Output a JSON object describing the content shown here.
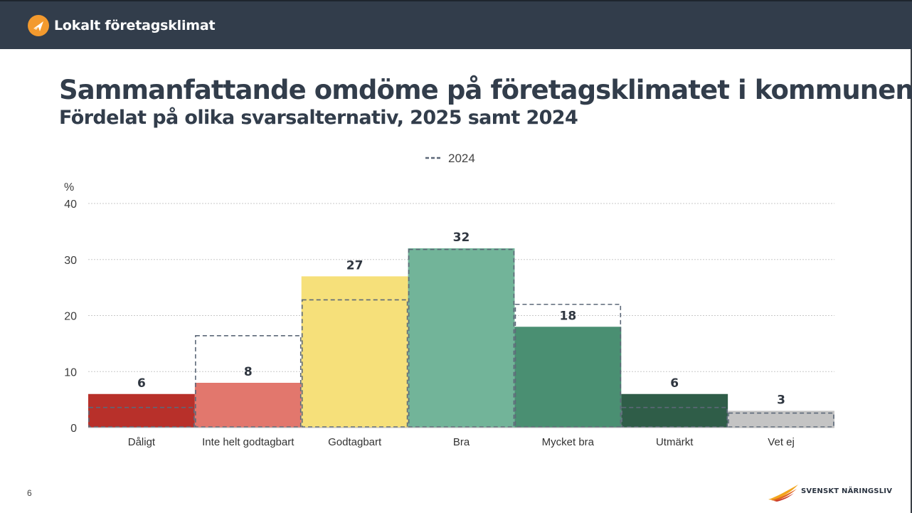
{
  "header": {
    "brand": "Lokalt företagsklimat",
    "brand_icon": "paper-plane-icon",
    "colors": {
      "bar": "#323d4b",
      "badge": "#f39a2e"
    }
  },
  "slide": {
    "title": "Sammanfattande omdöme på företagsklimatet i kommunen",
    "subtitle": "Fördelat på olika svarsalternativ, 2025 samt 2024",
    "page_number": "6"
  },
  "footer": {
    "logo_text": "SVENSKT NÄRINGSLIV",
    "logo_icon": "wing-icon"
  },
  "chart_data": {
    "type": "bar",
    "title": "",
    "xlabel": "",
    "ylabel": "%",
    "ylim": [
      0,
      40
    ],
    "yticks": [
      0,
      10,
      20,
      30,
      40
    ],
    "grid": true,
    "legend_position": "top-center",
    "categories": [
      "Dåligt",
      "Inte helt godtagbart",
      "Godtagbart",
      "Bra",
      "Mycket bra",
      "Utmärkt",
      "Vet ej"
    ],
    "series": [
      {
        "values": [
          6,
          8,
          27,
          32,
          18,
          6,
          3
        ],
        "colors": [
          "#b8302a",
          "#e2776d",
          "#f6e07a",
          "#72b499",
          "#4a8f72",
          "#2f5d48",
          "#c4c4c4"
        ]
      },
      {
        "name": "2024",
        "style": "dashed-outline",
        "color": "#5c6878",
        "values": [
          3.6,
          16.4,
          22.8,
          31.8,
          22,
          3.6,
          2.6
        ]
      }
    ],
    "data_labels": [
      "6",
      "8",
      "27",
      "32",
      "18",
      "6",
      "3"
    ]
  }
}
